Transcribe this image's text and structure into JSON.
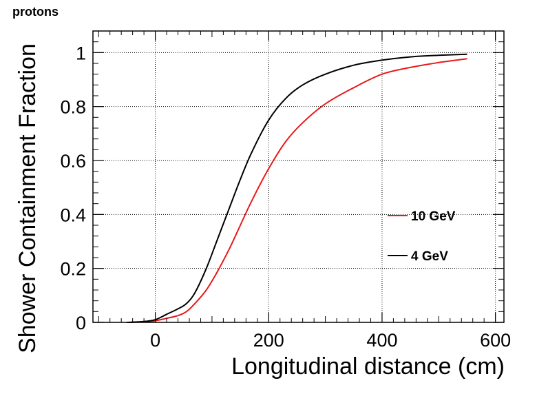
{
  "chart_data": {
    "type": "line",
    "title": "protons",
    "xlabel": "Longitudinal distance (cm)",
    "ylabel": "Shower Containment Fraction",
    "xlim": [
      -110,
      615
    ],
    "ylim": [
      0,
      1.08
    ],
    "xticks": [
      0,
      200,
      400,
      600
    ],
    "xtick_labels": [
      "0",
      "200",
      "400",
      "600"
    ],
    "yticks": [
      0,
      0.2,
      0.4,
      0.6,
      0.8,
      1
    ],
    "ytick_labels": [
      "0",
      "0.2",
      "0.4",
      "0.6",
      "0.8",
      "1"
    ],
    "grid": true,
    "legend_position": "right-middle",
    "series": [
      {
        "name": "10 GeV",
        "color": "#e8191b",
        "x": [
          -50,
          -20,
          0,
          20,
          40,
          55,
          70,
          90,
          110,
          130,
          150,
          170,
          200,
          230,
          260,
          300,
          350,
          400,
          450,
          500,
          550
        ],
        "y": [
          0.0,
          0.002,
          0.006,
          0.015,
          0.025,
          0.04,
          0.07,
          0.12,
          0.19,
          0.27,
          0.36,
          0.45,
          0.57,
          0.67,
          0.74,
          0.81,
          0.87,
          0.92,
          0.945,
          0.963,
          0.977
        ]
      },
      {
        "name": "4 GeV",
        "color": "#000000",
        "x": [
          -50,
          -20,
          0,
          20,
          40,
          55,
          70,
          90,
          110,
          130,
          150,
          170,
          200,
          230,
          260,
          300,
          350,
          400,
          450,
          500,
          550
        ],
        "y": [
          0.0,
          0.003,
          0.01,
          0.03,
          0.05,
          0.07,
          0.11,
          0.2,
          0.31,
          0.42,
          0.53,
          0.63,
          0.75,
          0.83,
          0.88,
          0.92,
          0.953,
          0.972,
          0.984,
          0.99,
          0.994
        ]
      }
    ]
  }
}
